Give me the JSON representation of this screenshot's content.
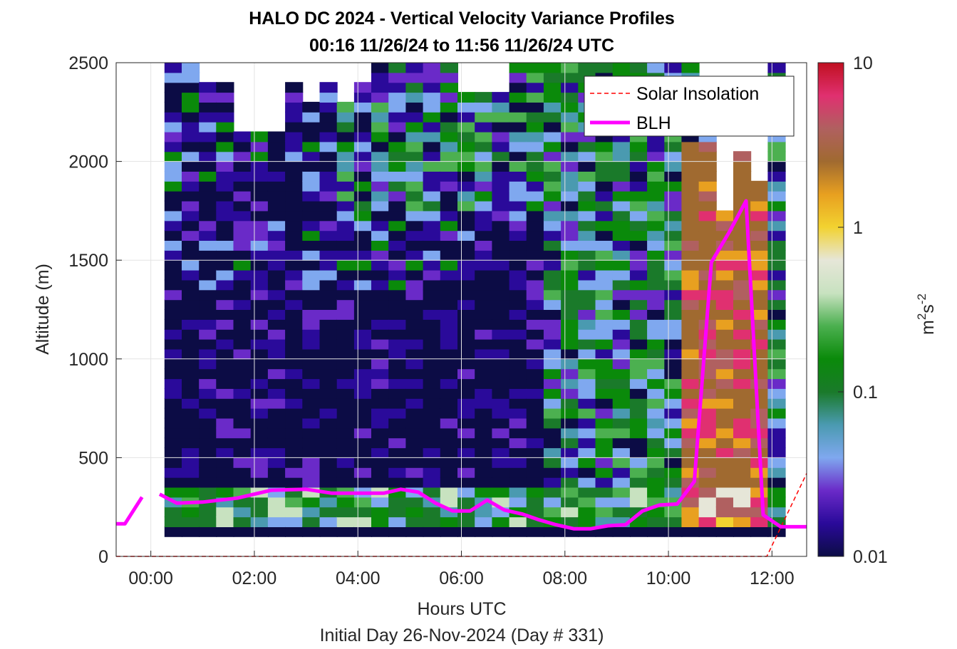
{
  "chart_data": {
    "type": "heatmap",
    "title": "HALO DC 2024 - Vertical Velocity Variance Profiles",
    "subtitle": "00:16 11/26/24 to 11:56 11/26/24  UTC",
    "xlabel": "Hours UTC",
    "xlabel2": "Initial Day 26-Nov-2024 (Day # 331)",
    "ylabel": "Altitude (m)",
    "colorbar_label": "m²s⁻²",
    "colorbar_label_base": "m",
    "colorbar_label_exp1": "2",
    "colorbar_label_mid": "s",
    "colorbar_label_exp2": "-2",
    "x_ticks": [
      "00:00",
      "02:00",
      "04:00",
      "06:00",
      "08:00",
      "10:00",
      "12:00"
    ],
    "x_tick_hours": [
      0,
      2,
      4,
      6,
      8,
      10,
      12
    ],
    "xlim_hours": [
      -0.67,
      12.67
    ],
    "y_ticks": [
      "0",
      "500",
      "1000",
      "1500",
      "2000",
      "2500"
    ],
    "y_tick_values": [
      0,
      500,
      1000,
      1500,
      2000,
      2500
    ],
    "ylim": [
      0,
      2500
    ],
    "colorbar_ticks": [
      "0.01",
      "0.1",
      "1",
      "10"
    ],
    "colorbar_tick_values": [
      0.01,
      0.1,
      1,
      10
    ],
    "colorbar_scale": "log",
    "grid": true,
    "legend_position": "top-right",
    "legend": [
      {
        "label": "Solar Insolation",
        "color": "#ff0000",
        "style": "dashed"
      },
      {
        "label": "BLH",
        "color": "#ff00ff",
        "style": "solid"
      }
    ],
    "heatmap": {
      "x_start_hours": 0.27,
      "x_step_hours": 0.333,
      "altitude_start_m": 100,
      "altitude_step_m": 50,
      "columns": 36,
      "rows": 48,
      "colormap": [
        "#0c0c45",
        "#2a0a9a",
        "#6a2ac8",
        "#7fa8ef",
        "#4a9ab0",
        "#1a7a2a",
        "#0a8a0a",
        "#4cb050",
        "#c8e2c0",
        "#e6e6d8",
        "#f2d230",
        "#e8a020",
        "#a06a30",
        "#b06060",
        "#e03070",
        "#c01020"
      ],
      "summary": "Low variance (~0.01-0.02 m2s-2) in stable night layer up to ~2400 m; near-surface (<350 m) values ~0.05-0.1; after 07:30 UTC mixing increases to ~0.05-0.2 aloft; 10:20-11:40 UTC convective boundary layer with 0.5-3 m2s-2 up to ~2100 m."
    },
    "series": [
      {
        "name": "BLH",
        "color": "#ff00ff",
        "x_hours": [
          -0.67,
          -0.5,
          -0.17,
          0.17,
          0.5,
          1.0,
          1.67,
          2.33,
          3.0,
          3.5,
          4.0,
          4.5,
          4.83,
          5.17,
          5.5,
          5.83,
          6.17,
          6.5,
          6.83,
          7.17,
          7.5,
          7.83,
          8.17,
          8.5,
          8.83,
          9.17,
          9.5,
          9.83,
          10.17,
          10.5,
          10.83,
          11.17,
          11.5,
          11.83,
          12.17,
          12.67
        ],
        "y_m": [
          165,
          165,
          300,
          315,
          270,
          275,
          295,
          335,
          340,
          320,
          320,
          320,
          340,
          325,
          270,
          230,
          230,
          285,
          235,
          215,
          185,
          160,
          140,
          140,
          155,
          160,
          230,
          260,
          265,
          380,
          1490,
          1640,
          1800,
          210,
          150,
          150
        ]
      },
      {
        "name": "Solar Insolation",
        "color": "#ff0000",
        "x_hours": [
          -0.67,
          11.9,
          12.67
        ],
        "y_m": [
          0,
          0,
          420
        ]
      }
    ]
  }
}
